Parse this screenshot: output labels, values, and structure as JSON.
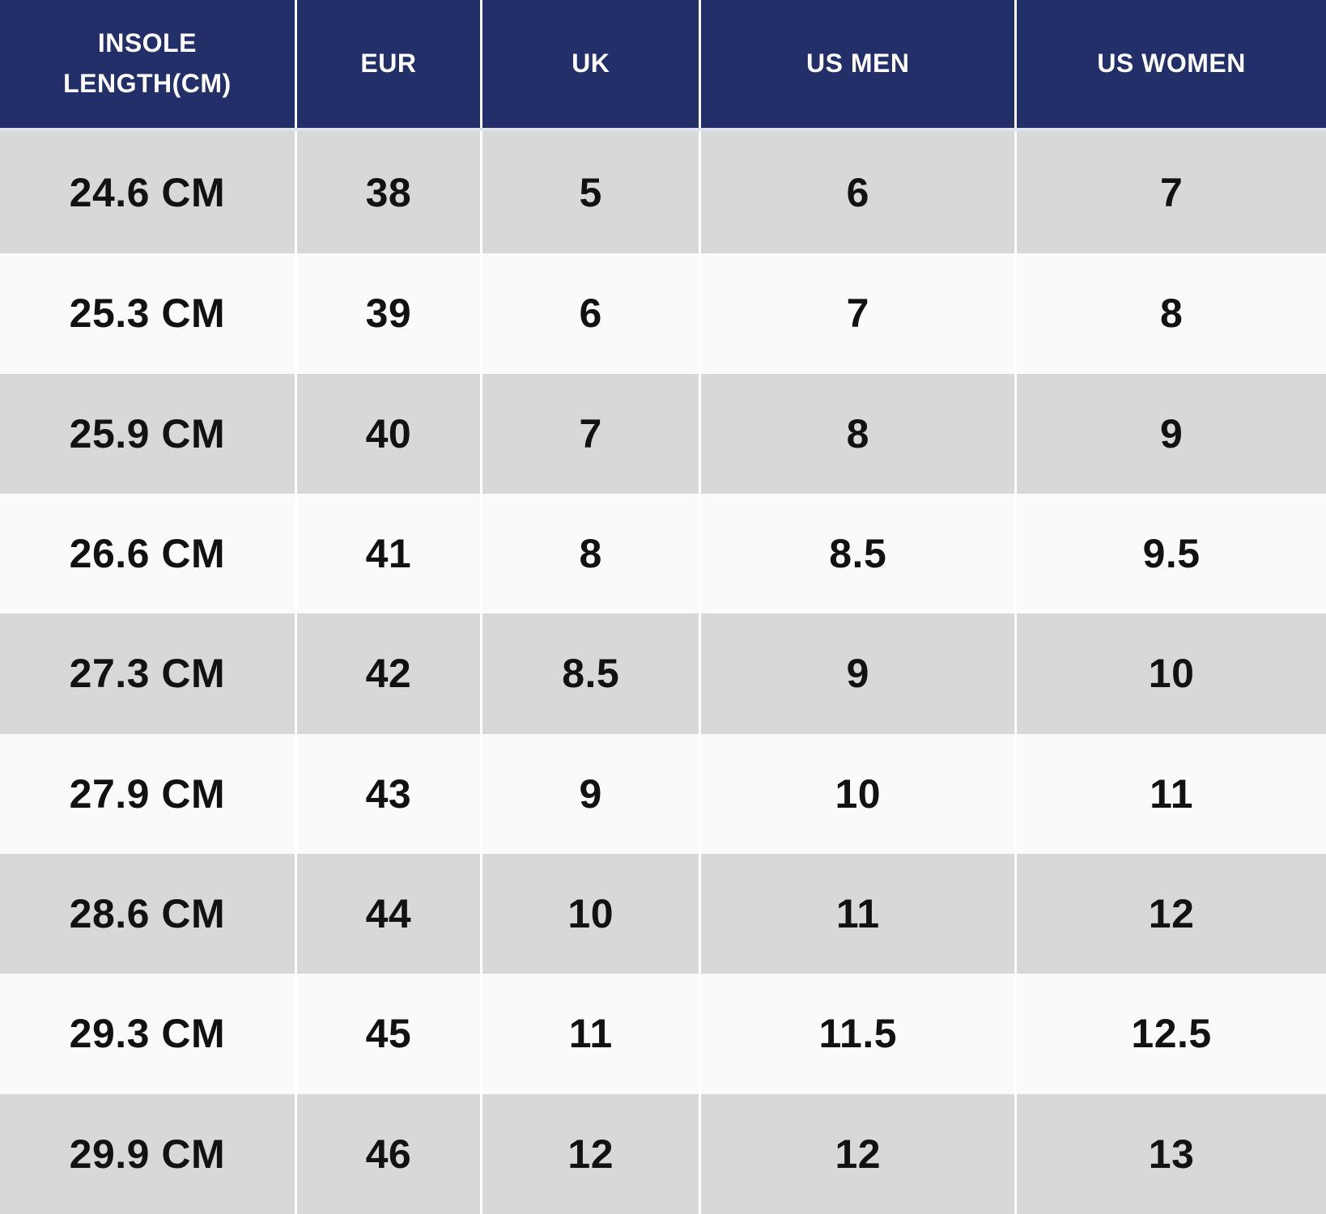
{
  "chart_data": {
    "type": "table",
    "columns": [
      "INSOLE LENGTH(CM)",
      "EUR",
      "UK",
      "US MEN",
      "US WOMEN"
    ],
    "rows": [
      [
        "24.6 CM",
        "38",
        "5",
        "6",
        "7"
      ],
      [
        "25.3 CM",
        "39",
        "6",
        "7",
        "8"
      ],
      [
        "25.9 CM",
        "40",
        "7",
        "8",
        "9"
      ],
      [
        "26.6 CM",
        "41",
        "8",
        "8.5",
        "9.5"
      ],
      [
        "27.3 CM",
        "42",
        "8.5",
        "9",
        "10"
      ],
      [
        "27.9 CM",
        "43",
        "9",
        "10",
        "11"
      ],
      [
        "28.6 CM",
        "44",
        "10",
        "11",
        "12"
      ],
      [
        "29.3 CM",
        "45",
        "11",
        "11.5",
        "12.5"
      ],
      [
        "29.9 CM",
        "46",
        "12",
        "12",
        "13"
      ]
    ]
  },
  "colors": {
    "header_bg": "#232f68",
    "header_text": "#ffffff",
    "row_gray": "#d8d8d8",
    "row_light": "#fafafa",
    "cell_text": "#121212",
    "column_divider": "#ffffff",
    "header_bottom_line": "#dfe1ec"
  }
}
